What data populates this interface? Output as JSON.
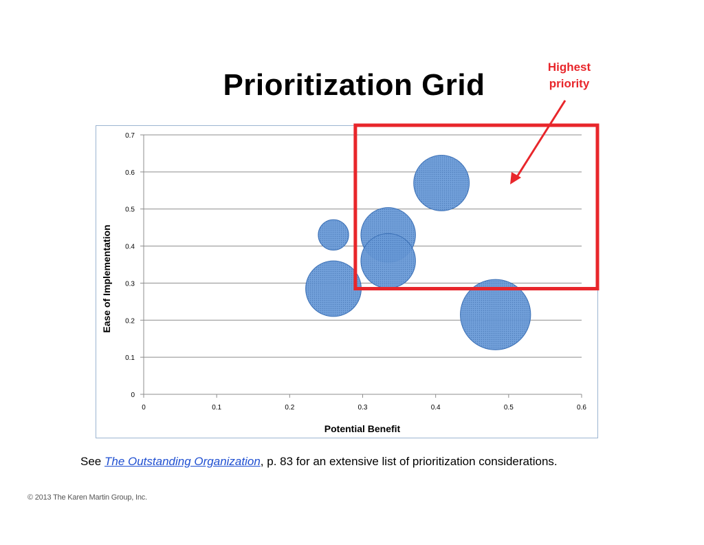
{
  "slide": {
    "title": "Prioritization Grid",
    "callout_line1": "Highest",
    "callout_line2": "priority",
    "note_prefix": "See ",
    "note_link": "The Outstanding Organization",
    "note_suffix": ", p. 83 for an extensive list of prioritization considerations.",
    "copyright": "© 2013 The Karen Martin Group, Inc."
  },
  "colors": {
    "bubble_fill": "#5b8fd0",
    "bubble_stroke": "#3a6fb5",
    "highlight": "#e8262b",
    "gridline": "#8c8c8c",
    "frame": "#9bb4d1"
  },
  "chart_data": {
    "type": "scatter",
    "variant": "bubble",
    "title": "",
    "xlabel": "Potential Benefit",
    "ylabel": "Ease of Implementation",
    "xlim": [
      0,
      0.6
    ],
    "ylim": [
      0,
      0.7
    ],
    "x_ticks": [
      "0",
      "0.1",
      "0.2",
      "0.3",
      "0.4",
      "0.5",
      "0.6"
    ],
    "y_ticks": [
      "0",
      "0.1",
      "0.2",
      "0.3",
      "0.4",
      "0.5",
      "0.6",
      "0.7"
    ],
    "grid": true,
    "legend": "none",
    "points": [
      {
        "x": 0.26,
        "y": 0.43,
        "size": 0.45
      },
      {
        "x": 0.26,
        "y": 0.285,
        "size": 1.5
      },
      {
        "x": 0.335,
        "y": 0.43,
        "size": 1.45
      },
      {
        "x": 0.335,
        "y": 0.36,
        "size": 1.45
      },
      {
        "x": 0.408,
        "y": 0.57,
        "size": 1.5
      },
      {
        "x": 0.482,
        "y": 0.215,
        "size": 2.4
      }
    ],
    "highlight_region": {
      "x": [
        0.29,
        0.6
      ],
      "y": [
        0.285,
        0.7
      ],
      "label": "Highest priority"
    }
  }
}
